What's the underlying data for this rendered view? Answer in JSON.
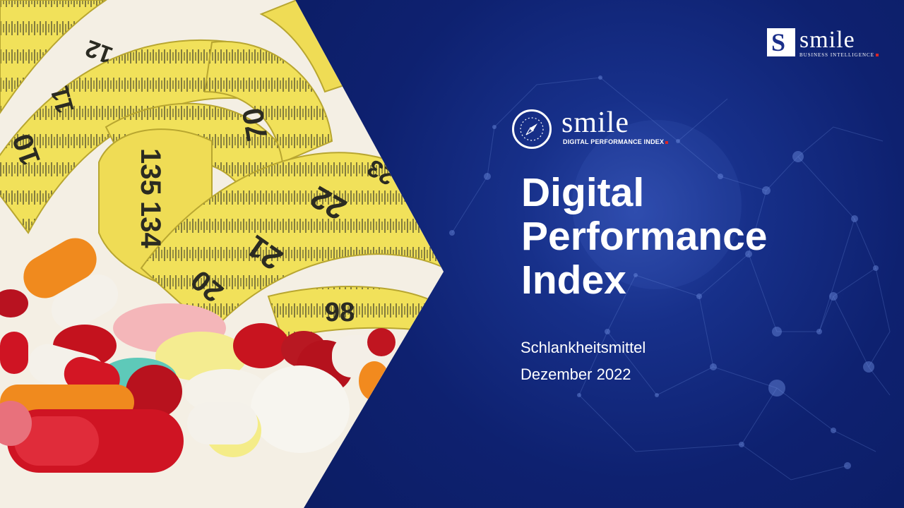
{
  "slide": {
    "title_lines": [
      "Digital",
      "Performance",
      "Index"
    ],
    "topic": "Schlankheitsmittel",
    "date": "Dezember 2022"
  },
  "brand": {
    "corner_logo": {
      "mark": "S",
      "wordmark": "smile",
      "tagline": "BUSINESS INTELLIGENCE"
    },
    "dpi_logo": {
      "wordmark": "smile",
      "tagline": "DIGITAL PERFORMANCE INDEX"
    },
    "accent_red": "#d92626",
    "navy": "#0e2170"
  },
  "photo": {
    "tape_numbers": [
      "12",
      "11",
      "10",
      "135",
      "134",
      "70",
      "22",
      "21",
      "20",
      "98",
      "23"
    ],
    "icons": [
      "measuring-tape",
      "pills"
    ]
  }
}
